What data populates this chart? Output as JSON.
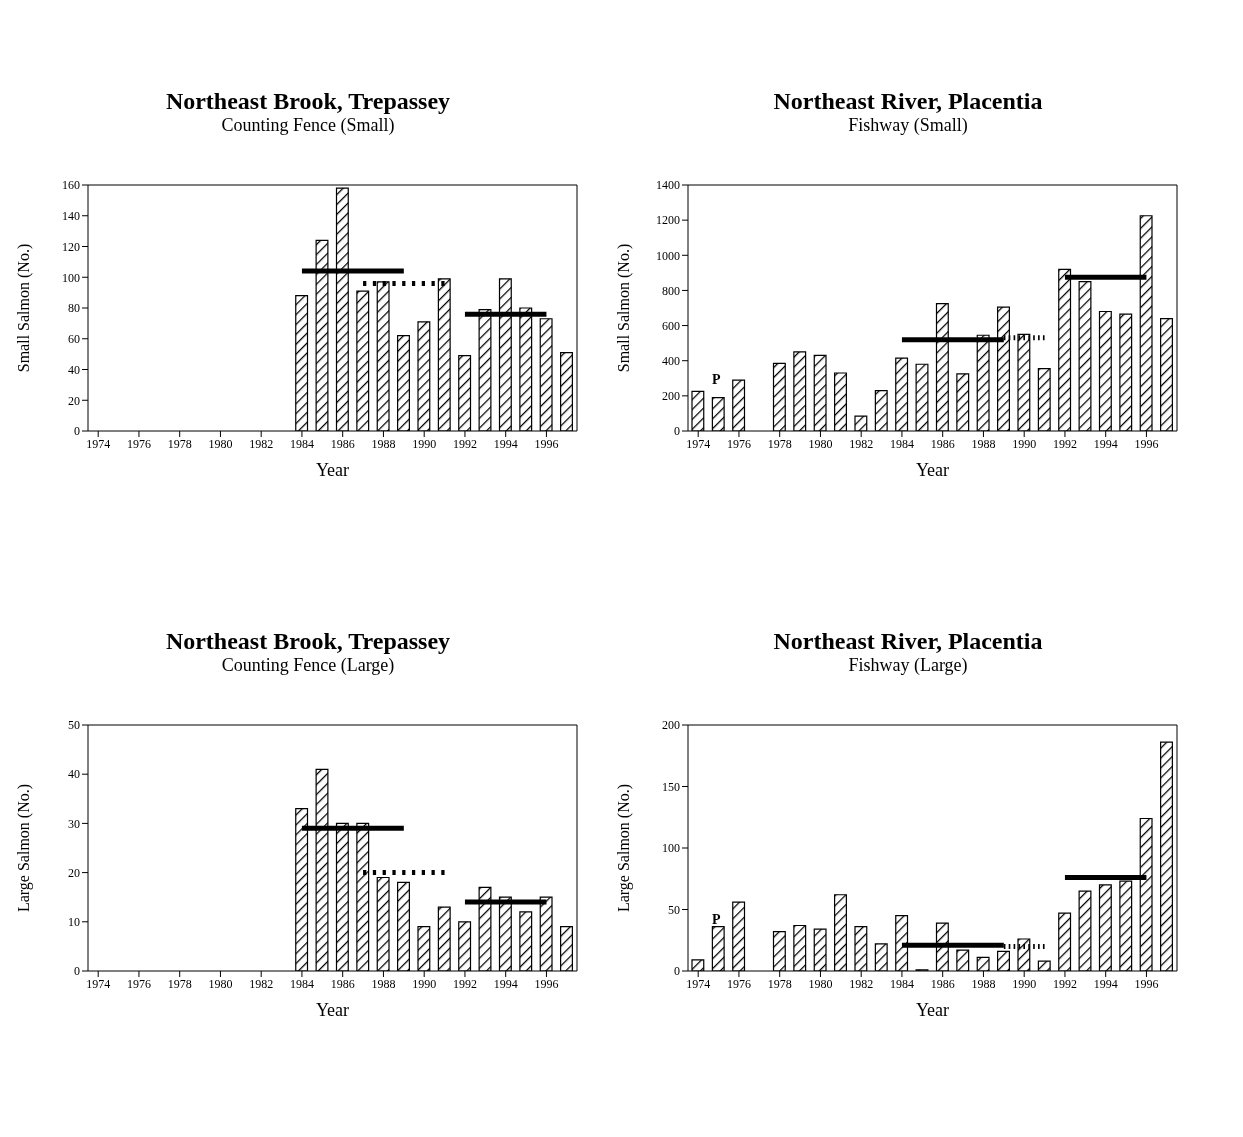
{
  "chart_data": [
    {
      "type": "bar",
      "title": "Northeast Brook, Trepassey",
      "subtitle": "Counting Fence (Small)",
      "xlabel": "Year",
      "ylabel": "Small Salmon (No.)",
      "xlim": [
        1973.5,
        1997.5
      ],
      "xticks": [
        1974,
        1976,
        1978,
        1980,
        1982,
        1984,
        1986,
        1988,
        1990,
        1992,
        1994,
        1996
      ],
      "ylim": [
        0,
        160
      ],
      "yticks": [
        0,
        20,
        40,
        60,
        80,
        100,
        120,
        140,
        160
      ],
      "grid": false,
      "x": [
        1984,
        1985,
        1986,
        1987,
        1988,
        1989,
        1990,
        1991,
        1992,
        1993,
        1994,
        1995,
        1996,
        1997
      ],
      "series": [
        {
          "type": "bar",
          "color": "#000000",
          "values": [
            88,
            124,
            158,
            91,
            97,
            62,
            71,
            99,
            49,
            79,
            99,
            80,
            73,
            51
          ]
        },
        {
          "type": "line",
          "color": "#000000",
          "line_style": "solid",
          "x": [
            1984,
            1989
          ],
          "values": [
            104,
            104
          ]
        },
        {
          "type": "line",
          "color": "#000000",
          "line_style": "dotted",
          "x": [
            1987,
            1991
          ],
          "values": [
            96,
            96
          ]
        },
        {
          "type": "line",
          "color": "#000000",
          "line_style": "solid",
          "x": [
            1992,
            1996
          ],
          "values": [
            76,
            76
          ]
        }
      ]
    },
    {
      "type": "bar",
      "title": "Northeast River, Placentia",
      "subtitle": "Fishway (Small)",
      "xlabel": "Year",
      "ylabel": "Small Salmon (No.)",
      "xlim": [
        1973.5,
        1997.5
      ],
      "xticks": [
        1974,
        1976,
        1978,
        1980,
        1982,
        1984,
        1986,
        1988,
        1990,
        1992,
        1994,
        1996
      ],
      "ylim": [
        0,
        1400
      ],
      "yticks": [
        0,
        200,
        400,
        600,
        800,
        1000,
        1200,
        1400
      ],
      "grid": false,
      "x": [
        1974,
        1975,
        1976,
        1977,
        1978,
        1979,
        1980,
        1981,
        1982,
        1983,
        1984,
        1985,
        1986,
        1987,
        1988,
        1989,
        1990,
        1991,
        1992,
        1993,
        1994,
        1995,
        1996,
        1997
      ],
      "annotations": [
        "P"
      ],
      "series": [
        {
          "type": "bar",
          "color": "#000000",
          "values": [
            225,
            190,
            290,
            null,
            385,
            450,
            430,
            330,
            85,
            230,
            415,
            380,
            725,
            325,
            545,
            705,
            550,
            355,
            920,
            850,
            680,
            665,
            1225,
            640
          ]
        },
        {
          "type": "line",
          "color": "#000000",
          "line_style": "solid",
          "x": [
            1984,
            1989
          ],
          "values": [
            520,
            520
          ]
        },
        {
          "type": "line",
          "color": "#000000",
          "line_style": "dotted",
          "x": [
            1989,
            1991
          ],
          "values": [
            530,
            530
          ]
        },
        {
          "type": "line",
          "color": "#000000",
          "line_style": "solid",
          "x": [
            1992,
            1996
          ],
          "values": [
            875,
            875
          ]
        }
      ]
    },
    {
      "type": "bar",
      "title": "Northeast Brook, Trepassey",
      "subtitle": "Counting Fence (Large)",
      "xlabel": "Year",
      "ylabel": "Large Salmon (No.)",
      "xlim": [
        1973.5,
        1997.5
      ],
      "xticks": [
        1974,
        1976,
        1978,
        1980,
        1982,
        1984,
        1986,
        1988,
        1990,
        1992,
        1994,
        1996
      ],
      "ylim": [
        0,
        50
      ],
      "yticks": [
        0,
        10,
        20,
        30,
        40,
        50
      ],
      "grid": false,
      "x": [
        1984,
        1985,
        1986,
        1987,
        1988,
        1989,
        1990,
        1991,
        1992,
        1993,
        1994,
        1995,
        1996,
        1997
      ],
      "series": [
        {
          "type": "bar",
          "color": "#000000",
          "values": [
            33,
            41,
            30,
            30,
            19,
            18,
            9,
            13,
            10,
            17,
            15,
            12,
            15,
            9
          ]
        },
        {
          "type": "line",
          "color": "#000000",
          "line_style": "solid",
          "x": [
            1984,
            1989
          ],
          "values": [
            29,
            29
          ]
        },
        {
          "type": "line",
          "color": "#000000",
          "line_style": "dotted",
          "x": [
            1987,
            1991
          ],
          "values": [
            20,
            20
          ]
        },
        {
          "type": "line",
          "color": "#000000",
          "line_style": "solid",
          "x": [
            1992,
            1996
          ],
          "values": [
            14,
            14
          ]
        }
      ]
    },
    {
      "type": "bar",
      "title": "Northeast River, Placentia",
      "subtitle": "Fishway (Large)",
      "xlabel": "Year",
      "ylabel": "Large Salmon (No.)",
      "xlim": [
        1973.5,
        1997.5
      ],
      "xticks": [
        1974,
        1976,
        1978,
        1980,
        1982,
        1984,
        1986,
        1988,
        1990,
        1992,
        1994,
        1996
      ],
      "ylim": [
        0,
        200
      ],
      "yticks": [
        0,
        50,
        100,
        150,
        200
      ],
      "grid": false,
      "x": [
        1974,
        1975,
        1976,
        1977,
        1978,
        1979,
        1980,
        1981,
        1982,
        1983,
        1984,
        1985,
        1986,
        1987,
        1988,
        1989,
        1990,
        1991,
        1992,
        1993,
        1994,
        1995,
        1996,
        1997
      ],
      "annotations": [
        "P"
      ],
      "series": [
        {
          "type": "bar",
          "color": "#000000",
          "values": [
            9,
            36,
            56,
            null,
            32,
            37,
            34,
            62,
            36,
            22,
            45,
            1,
            39,
            17,
            11,
            16,
            26,
            8,
            47,
            65,
            70,
            73,
            124,
            186
          ]
        },
        {
          "type": "line",
          "color": "#000000",
          "line_style": "solid",
          "x": [
            1984,
            1989
          ],
          "values": [
            21,
            21
          ]
        },
        {
          "type": "line",
          "color": "#000000",
          "line_style": "dotted",
          "x": [
            1989,
            1991
          ],
          "values": [
            20,
            20
          ]
        },
        {
          "type": "line",
          "color": "#000000",
          "line_style": "solid",
          "x": [
            1992,
            1996
          ],
          "values": [
            76,
            76
          ]
        }
      ]
    }
  ]
}
